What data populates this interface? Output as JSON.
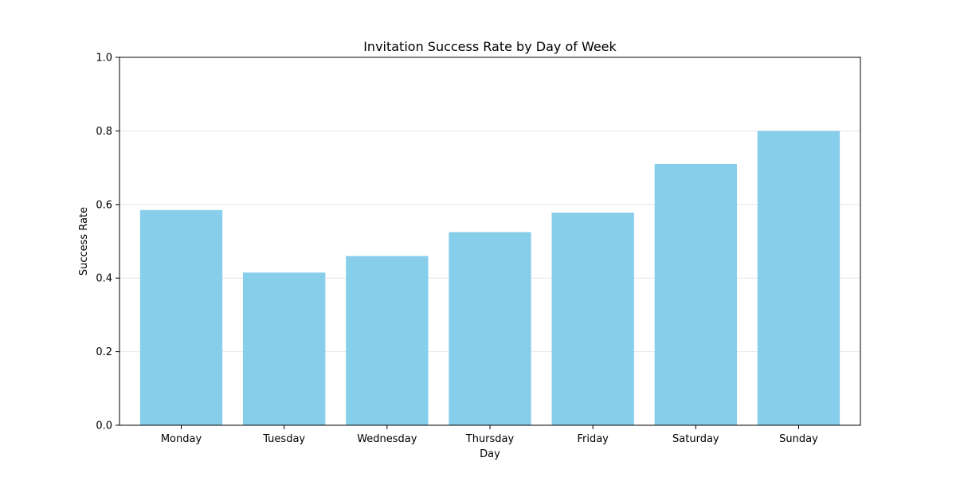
{
  "chart_data": {
    "type": "bar",
    "title": "Invitation Success Rate by Day of Week",
    "xlabel": "Day",
    "ylabel": "Success Rate",
    "categories": [
      "Monday",
      "Tuesday",
      "Wednesday",
      "Thursday",
      "Friday",
      "Saturday",
      "Sunday"
    ],
    "values": [
      0.585,
      0.415,
      0.46,
      0.525,
      0.578,
      0.71,
      0.8
    ],
    "ylim": [
      0,
      1.0
    ],
    "yticks": [
      0.0,
      0.2,
      0.4,
      0.6,
      0.8,
      1.0
    ],
    "ytick_labels": [
      "0.0",
      "0.2",
      "0.4",
      "0.6",
      "0.8",
      "1.0"
    ],
    "grid": "y-axis horizontal, light",
    "legend": "none",
    "colors": {
      "bar": "#87ceeb",
      "grid": "#e6e6e6",
      "axis": "#000000"
    }
  }
}
